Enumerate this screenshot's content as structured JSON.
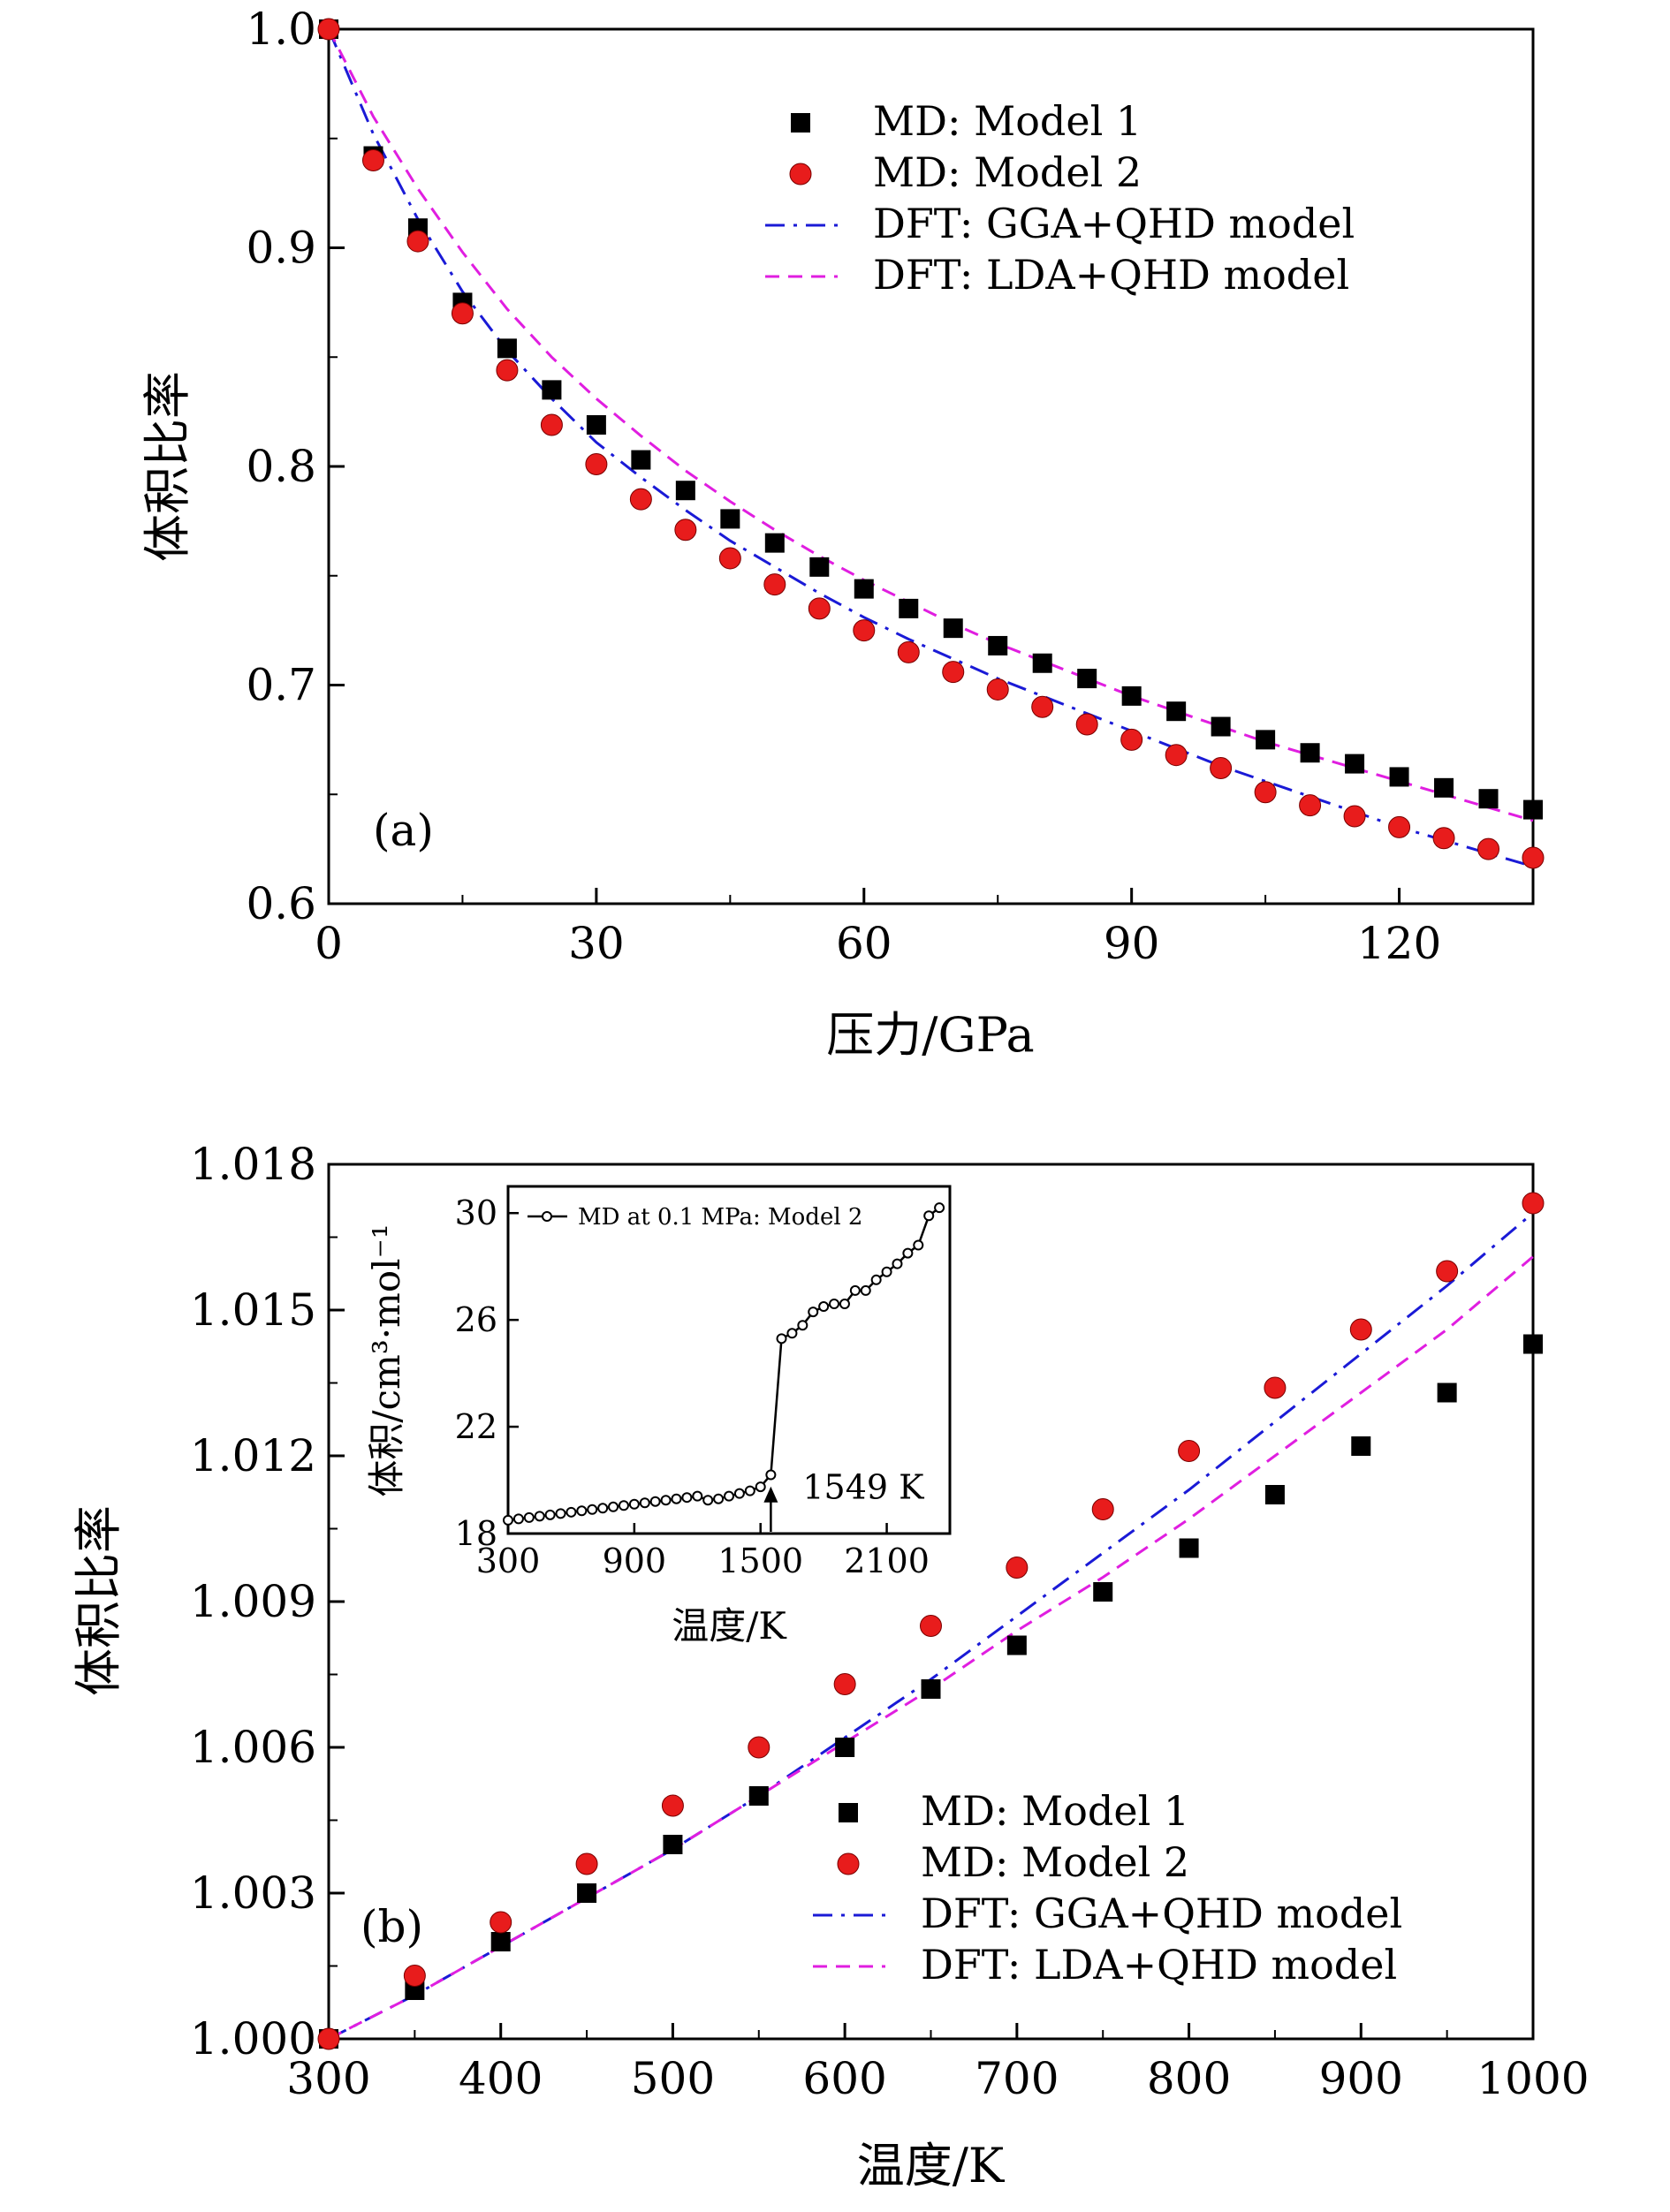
{
  "chart_data": [
    {
      "type": "scatter",
      "panel_label": "(a)",
      "xlabel": "压力/GPa",
      "ylabel": "体积比率",
      "xlim": [
        0,
        135
      ],
      "ylim": [
        0.6,
        1.0
      ],
      "xticks": [
        0,
        30,
        60,
        90,
        120
      ],
      "yticks": [
        0.6,
        0.7,
        0.8,
        0.9,
        1.0
      ],
      "grid": false,
      "legend_position": "top-right",
      "series": [
        {
          "name": "MD: Model 1",
          "kind": "square-marker",
          "color": "#000000",
          "x": [
            0,
            5,
            10,
            15,
            20,
            25,
            30,
            35,
            40,
            45,
            50,
            55,
            60,
            65,
            70,
            75,
            80,
            85,
            90,
            95,
            100,
            105,
            110,
            115,
            120,
            125,
            130,
            135
          ],
          "y": [
            1.0,
            0.942,
            0.909,
            0.875,
            0.854,
            0.835,
            0.819,
            0.803,
            0.789,
            0.776,
            0.765,
            0.754,
            0.744,
            0.735,
            0.726,
            0.718,
            0.71,
            0.703,
            0.695,
            0.688,
            0.681,
            0.675,
            0.669,
            0.664,
            0.658,
            0.653,
            0.648,
            0.643
          ]
        },
        {
          "name": "MD: Model 2",
          "kind": "circle-marker",
          "color": "#e81c1c",
          "x": [
            0,
            5,
            10,
            15,
            20,
            25,
            30,
            35,
            40,
            45,
            50,
            55,
            60,
            65,
            70,
            75,
            80,
            85,
            90,
            95,
            100,
            105,
            110,
            115,
            120,
            125,
            130,
            135
          ],
          "y": [
            1.0,
            0.94,
            0.903,
            0.87,
            0.844,
            0.819,
            0.801,
            0.785,
            0.771,
            0.758,
            0.746,
            0.735,
            0.725,
            0.715,
            0.706,
            0.698,
            0.69,
            0.682,
            0.675,
            0.668,
            0.662,
            0.651,
            0.645,
            0.64,
            0.635,
            0.63,
            0.625,
            0.621
          ]
        },
        {
          "name": "DFT: GGA+QHD model",
          "kind": "dash-dot-line",
          "color": "#1a1ad6",
          "x": [
            0,
            5,
            10,
            15,
            20,
            25,
            30,
            35,
            40,
            45,
            50,
            55,
            60,
            65,
            70,
            75,
            80,
            85,
            90,
            95,
            100,
            105,
            110,
            115,
            120,
            125,
            130,
            135
          ],
          "y": [
            1.0,
            0.952,
            0.913,
            0.88,
            0.853,
            0.831,
            0.811,
            0.795,
            0.78,
            0.766,
            0.754,
            0.742,
            0.731,
            0.721,
            0.712,
            0.703,
            0.695,
            0.687,
            0.679,
            0.671,
            0.663,
            0.656,
            0.649,
            0.642,
            0.635,
            0.629,
            0.623,
            0.617
          ]
        },
        {
          "name": "DFT: LDA+QHD model",
          "kind": "dash-line",
          "color": "#e01ee0",
          "x": [
            0,
            5,
            10,
            15,
            20,
            25,
            30,
            35,
            40,
            45,
            50,
            55,
            60,
            65,
            70,
            75,
            80,
            85,
            90,
            95,
            100,
            105,
            110,
            115,
            120,
            125,
            130,
            135
          ],
          "y": [
            1.0,
            0.96,
            0.927,
            0.898,
            0.872,
            0.85,
            0.831,
            0.814,
            0.798,
            0.784,
            0.771,
            0.759,
            0.748,
            0.738,
            0.728,
            0.719,
            0.711,
            0.703,
            0.695,
            0.688,
            0.681,
            0.674,
            0.668,
            0.662,
            0.656,
            0.65,
            0.644,
            0.638
          ]
        }
      ]
    },
    {
      "type": "scatter",
      "panel_label": "(b)",
      "xlabel": "温度/K",
      "ylabel": "体积比率",
      "xlim": [
        300,
        1000
      ],
      "ylim": [
        1.0,
        1.018
      ],
      "xticks": [
        300,
        400,
        500,
        600,
        700,
        800,
        900,
        1000
      ],
      "yticks": [
        "1.000",
        "1.003",
        "1.006",
        "1.009",
        "1.012",
        "1.015",
        "1.018"
      ],
      "grid": false,
      "legend_position": "bottom-right",
      "series": [
        {
          "name": "MD: Model 1",
          "kind": "square-marker",
          "color": "#000000",
          "x": [
            300,
            350,
            400,
            450,
            500,
            550,
            600,
            650,
            700,
            750,
            800,
            850,
            900,
            950,
            1000
          ],
          "y": [
            1.0,
            1.001,
            1.002,
            1.003,
            1.004,
            1.005,
            1.006,
            1.0072,
            1.0081,
            1.0092,
            1.0101,
            1.0112,
            1.0122,
            1.0133,
            1.0143
          ]
        },
        {
          "name": "MD: Model 2",
          "kind": "circle-marker",
          "color": "#e81c1c",
          "x": [
            300,
            350,
            400,
            450,
            500,
            550,
            600,
            650,
            700,
            750,
            800,
            850,
            900,
            950,
            1000
          ],
          "y": [
            1.0,
            1.0013,
            1.0024,
            1.0036,
            1.0048,
            1.006,
            1.0073,
            1.0085,
            1.0097,
            1.0109,
            1.0121,
            1.0134,
            1.0146,
            1.0158,
            1.0172
          ]
        },
        {
          "name": "DFT: GGA+QHD model",
          "kind": "dash-dot-line",
          "color": "#1a1ad6",
          "x": [
            300,
            350,
            400,
            450,
            500,
            550,
            600,
            650,
            700,
            750,
            800,
            850,
            900,
            950,
            1000
          ],
          "y": [
            1.0,
            1.0009,
            1.0019,
            1.0029,
            1.0039,
            1.005,
            1.0062,
            1.0074,
            1.0087,
            1.01,
            1.0113,
            1.0127,
            1.0141,
            1.0155,
            1.017
          ]
        },
        {
          "name": "DFT: LDA+QHD model",
          "kind": "dash-line",
          "color": "#e01ee0",
          "x": [
            300,
            350,
            400,
            450,
            500,
            550,
            600,
            650,
            700,
            750,
            800,
            850,
            900,
            950,
            1000
          ],
          "y": [
            1.0,
            1.0009,
            1.0019,
            1.0029,
            1.0039,
            1.005,
            1.0061,
            1.0072,
            1.0084,
            1.0095,
            1.0107,
            1.012,
            1.0133,
            1.0146,
            1.0161
          ]
        }
      ],
      "inset": {
        "type": "line",
        "xlabel": "温度/K",
        "ylabel": "体积/cm³·mol⁻¹",
        "xlim": [
          300,
          2400
        ],
        "ylim": [
          18,
          31
        ],
        "xticks": [
          300,
          900,
          1500,
          2100
        ],
        "yticks": [
          18,
          22,
          26,
          30
        ],
        "legend_position": "top-left",
        "annotation": "1549 K",
        "annotation_x": 1549,
        "series": [
          {
            "name": "MD at 0.1 MPa: Model 2",
            "kind": "line-with-open-circles",
            "color": "#000000",
            "x": [
              300,
              350,
              400,
              450,
              500,
              550,
              600,
              650,
              700,
              750,
              800,
              850,
              900,
              950,
              1000,
              1050,
              1100,
              1150,
              1200,
              1250,
              1300,
              1350,
              1400,
              1450,
              1500,
              1549,
              1600,
              1650,
              1700,
              1750,
              1800,
              1850,
              1900,
              1950,
              2000,
              2050,
              2100,
              2150,
              2200,
              2250,
              2300,
              2350
            ],
            "y": [
              18.5,
              18.55,
              18.6,
              18.65,
              18.7,
              18.75,
              18.8,
              18.85,
              18.9,
              18.95,
              19.0,
              19.05,
              19.1,
              19.15,
              19.2,
              19.25,
              19.3,
              19.35,
              19.4,
              19.25,
              19.3,
              19.4,
              19.5,
              19.6,
              19.75,
              20.2,
              25.3,
              25.5,
              25.8,
              26.3,
              26.5,
              26.6,
              26.6,
              27.1,
              27.1,
              27.5,
              27.8,
              28.1,
              28.5,
              28.8,
              29.9,
              30.2
            ]
          }
        ]
      }
    }
  ]
}
